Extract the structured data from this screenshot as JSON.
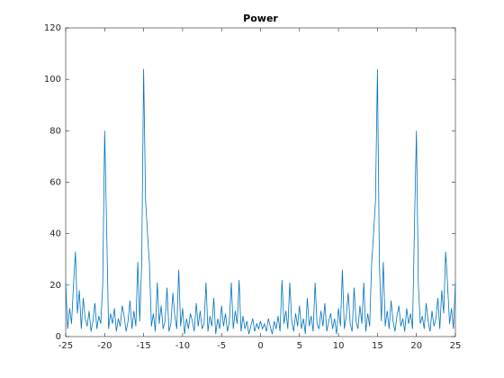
{
  "chart_data": {
    "type": "line",
    "title": "Power",
    "x": [
      -25,
      -24.75,
      -24.5,
      -24.25,
      -24,
      -23.75,
      -23.5,
      -23.25,
      -23,
      -22.75,
      -22.5,
      -22.25,
      -22,
      -21.75,
      -21.5,
      -21.25,
      -21,
      -20.75,
      -20.5,
      -20.25,
      -20,
      -19.75,
      -19.5,
      -19.25,
      -19,
      -18.75,
      -18.5,
      -18.25,
      -18,
      -17.75,
      -17.5,
      -17.25,
      -17,
      -16.75,
      -16.5,
      -16.25,
      -16,
      -15.75,
      -15.5,
      -15.25,
      -15,
      -14.75,
      -14.5,
      -14.25,
      -14,
      -13.75,
      -13.5,
      -13.25,
      -13,
      -12.75,
      -12.5,
      -12.25,
      -12,
      -11.75,
      -11.5,
      -11.25,
      -11,
      -10.75,
      -10.5,
      -10.25,
      -10,
      -9.75,
      -9.5,
      -9.25,
      -9,
      -8.75,
      -8.5,
      -8.25,
      -8,
      -7.75,
      -7.5,
      -7.25,
      -7,
      -6.75,
      -6.5,
      -6.25,
      -6,
      -5.75,
      -5.5,
      -5.25,
      -5,
      -4.75,
      -4.5,
      -4.25,
      -4,
      -3.75,
      -3.5,
      -3.25,
      -3,
      -2.75,
      -2.5,
      -2.25,
      -2,
      -1.75,
      -1.5,
      -1.25,
      -1,
      -0.75,
      -0.5,
      -0.25,
      0,
      0.25,
      0.5,
      0.75,
      1,
      1.25,
      1.5,
      1.75,
      2,
      2.25,
      2.5,
      2.75,
      3,
      3.25,
      3.5,
      3.75,
      4,
      4.25,
      4.5,
      4.75,
      5,
      5.25,
      5.5,
      5.75,
      6,
      6.25,
      6.5,
      6.75,
      7,
      7.25,
      7.5,
      7.75,
      8,
      8.25,
      8.5,
      8.75,
      9,
      9.25,
      9.5,
      9.75,
      10,
      10.25,
      10.5,
      10.75,
      11,
      11.25,
      11.5,
      11.75,
      12,
      12.25,
      12.5,
      12.75,
      13,
      13.25,
      13.5,
      13.75,
      14,
      14.25,
      14.5,
      14.75,
      15,
      15.25,
      15.5,
      15.75,
      16,
      16.25,
      16.5,
      16.75,
      17,
      17.25,
      17.5,
      17.75,
      18,
      18.25,
      18.5,
      18.75,
      19,
      19.25,
      19.5,
      19.75,
      20,
      20.25,
      20.5,
      20.75,
      21,
      21.25,
      21.5,
      21.75,
      22,
      22.25,
      22.5,
      22.75,
      23,
      23.25,
      23.5,
      23.75,
      24,
      24.25,
      24.5,
      24.75,
      25
    ],
    "series": [
      {
        "color": "#0072bd",
        "values": [
          21,
          3,
          11,
          5,
          20,
          33,
          9,
          18,
          3,
          15,
          7,
          4,
          10,
          2,
          6,
          13,
          3,
          8,
          5,
          20,
          80,
          43,
          3,
          9,
          5,
          11,
          2,
          7,
          4,
          12,
          8,
          2,
          6,
          14,
          3,
          10,
          4,
          29,
          6,
          28,
          104,
          53,
          40,
          28,
          4,
          9,
          2,
          21,
          5,
          12,
          3,
          6,
          19,
          2,
          5,
          17,
          8,
          3,
          26,
          4,
          11,
          1,
          7,
          3,
          9,
          6,
          2,
          13,
          4,
          10,
          3,
          5,
          21,
          2,
          8,
          4,
          15,
          1,
          7,
          3,
          12,
          4,
          9,
          2,
          6,
          21,
          3,
          10,
          5,
          22,
          2,
          8,
          3,
          6,
          1,
          4,
          7,
          2,
          5,
          3,
          6,
          3,
          5,
          2,
          7,
          4,
          1,
          6,
          3,
          8,
          2,
          22,
          5,
          10,
          3,
          21,
          6,
          2,
          9,
          4,
          12,
          3,
          7,
          1,
          15,
          4,
          8,
          2,
          21,
          5,
          3,
          10,
          4,
          13,
          2,
          6,
          9,
          3,
          7,
          1,
          11,
          4,
          26,
          3,
          8,
          17,
          5,
          2,
          19,
          6,
          3,
          12,
          5,
          21,
          2,
          9,
          4,
          28,
          40,
          53,
          104,
          28,
          6,
          29,
          4,
          10,
          3,
          14,
          6,
          2,
          8,
          12,
          4,
          7,
          2,
          11,
          5,
          9,
          3,
          43,
          80,
          20,
          5,
          8,
          3,
          13,
          6,
          2,
          10,
          4,
          7,
          15,
          3,
          18,
          9,
          33,
          20,
          5,
          11,
          3,
          21
        ]
      }
    ],
    "xlim": [
      -25,
      25
    ],
    "ylim": [
      0,
      120
    ],
    "xticks": [
      -25,
      -20,
      -15,
      -10,
      -5,
      0,
      5,
      10,
      15,
      20,
      25
    ],
    "yticks": [
      0,
      20,
      40,
      60,
      80,
      100,
      120
    ]
  }
}
